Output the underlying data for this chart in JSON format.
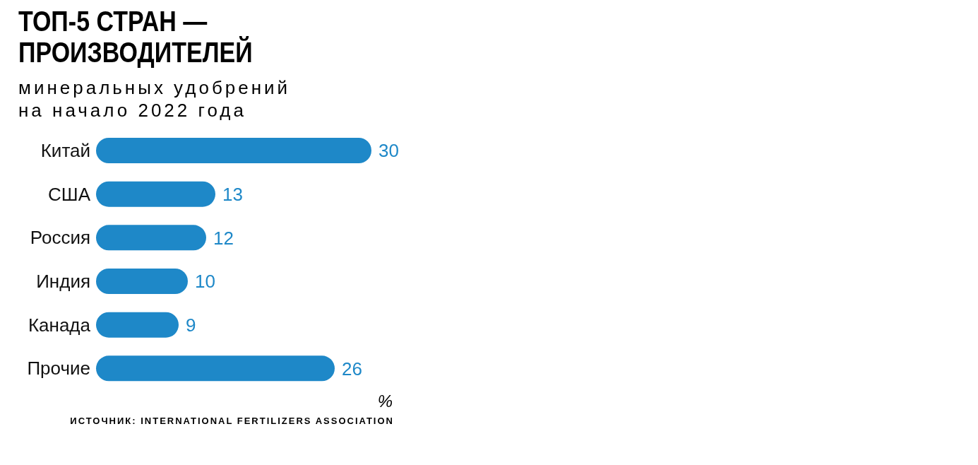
{
  "chart_data": {
    "type": "bar",
    "orientation": "horizontal",
    "title": "ТОП-5 СТРАН —\nПРОИЗВОДИТЕЛЕЙ",
    "subtitle": "минеральных удобрений\nна начало 2022 года",
    "categories": [
      "Китай",
      "США",
      "Россия",
      "Индия",
      "Канада",
      "Прочие"
    ],
    "values": [
      30,
      13,
      12,
      10,
      9,
      26
    ],
    "color": "#1e88c8",
    "data_labels": true,
    "xlabel": "%",
    "annotations": [
      "ИСТОЧНИК: INTERNATIONAL FERTILIZERS ASSOCIATION"
    ],
    "grid": false,
    "legend": false
  }
}
